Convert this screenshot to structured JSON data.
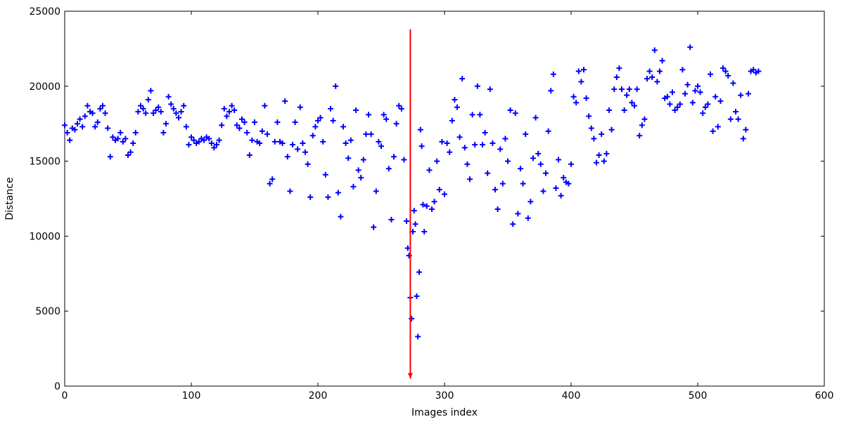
{
  "chart_data": {
    "type": "scatter",
    "xlabel": "Images index",
    "ylabel": "Distance",
    "xlim": [
      0,
      600
    ],
    "ylim": [
      0,
      25000
    ],
    "xticks": [
      0,
      100,
      200,
      300,
      400,
      500,
      600
    ],
    "yticks": [
      0,
      5000,
      10000,
      15000,
      20000,
      25000
    ],
    "grid": false,
    "color": "#0000ff",
    "marker": "+",
    "x": [
      0,
      2,
      4,
      6,
      8,
      10,
      12,
      14,
      16,
      18,
      20,
      22,
      24,
      26,
      28,
      30,
      32,
      34,
      36,
      38,
      40,
      42,
      44,
      46,
      48,
      50,
      52,
      54,
      56,
      58,
      60,
      62,
      64,
      66,
      68,
      70,
      72,
      74,
      76,
      78,
      80,
      82,
      84,
      86,
      88,
      90,
      92,
      94,
      96,
      98,
      100,
      102,
      104,
      106,
      108,
      110,
      112,
      114,
      116,
      118,
      120,
      122,
      124,
      126,
      128,
      130,
      132,
      134,
      136,
      138,
      140,
      142,
      144,
      146,
      148,
      150,
      152,
      154,
      156,
      158,
      160,
      162,
      164,
      166,
      168,
      170,
      172,
      174,
      176,
      178,
      180,
      182,
      184,
      186,
      188,
      190,
      192,
      194,
      196,
      198,
      200,
      202,
      204,
      206,
      208,
      210,
      212,
      214,
      216,
      218,
      220,
      222,
      224,
      226,
      228,
      230,
      232,
      234,
      236,
      238,
      240,
      242,
      244,
      246,
      248,
      250,
      252,
      254,
      256,
      258,
      260,
      262,
      264,
      266,
      268,
      270,
      271,
      272,
      273,
      274,
      275,
      276,
      277,
      278,
      279,
      280,
      281,
      282,
      283,
      284,
      286,
      288,
      290,
      292,
      294,
      296,
      298,
      300,
      302,
      304,
      306,
      308,
      310,
      312,
      314,
      316,
      318,
      320,
      322,
      324,
      326,
      328,
      330,
      332,
      334,
      336,
      338,
      340,
      342,
      344,
      346,
      348,
      350,
      352,
      354,
      356,
      358,
      360,
      362,
      364,
      366,
      368,
      370,
      372,
      374,
      376,
      378,
      380,
      382,
      384,
      386,
      388,
      390,
      392,
      394,
      396,
      398,
      400,
      402,
      404,
      406,
      408,
      410,
      412,
      414,
      416,
      418,
      420,
      422,
      424,
      426,
      428,
      430,
      432,
      434,
      436,
      438,
      440,
      442,
      444,
      446,
      448,
      450,
      452,
      454,
      456,
      458,
      460,
      462,
      464,
      466,
      468,
      470,
      472,
      474,
      476,
      478,
      480,
      482,
      484,
      486,
      488,
      490,
      492,
      494,
      496,
      498,
      500,
      502,
      504,
      506,
      508,
      510,
      512,
      514,
      516,
      518,
      520,
      522,
      524,
      526,
      528,
      530,
      532,
      534,
      536,
      538,
      540,
      542,
      544,
      546,
      548
    ],
    "values": [
      17400,
      16900,
      16400,
      17200,
      17100,
      17500,
      17800,
      17300,
      18000,
      18700,
      18300,
      18200,
      17300,
      17600,
      18500,
      18700,
      18200,
      17200,
      15300,
      16600,
      16400,
      16500,
      16900,
      16300,
      16500,
      15400,
      15600,
      16200,
      16900,
      18300,
      18700,
      18500,
      18200,
      19100,
      19700,
      18200,
      18400,
      18600,
      18300,
      16900,
      17500,
      19300,
      18800,
      18500,
      18200,
      17900,
      18300,
      18700,
      17300,
      16100,
      16600,
      16400,
      16200,
      16300,
      16500,
      16400,
      16600,
      16500,
      16200,
      15900,
      16100,
      16400,
      17400,
      18500,
      18000,
      18300,
      18700,
      18400,
      17400,
      17200,
      17800,
      17600,
      16900,
      15400,
      16400,
      17600,
      16300,
      16200,
      17000,
      18700,
      16800,
      13500,
      13800,
      16300,
      17600,
      16300,
      16200,
      19000,
      15300,
      13000,
      16100,
      17600,
      15800,
      18600,
      16200,
      15600,
      14800,
      12600,
      16700,
      17300,
      17700,
      17900,
      16300,
      14100,
      12600,
      18500,
      17700,
      20000,
      12900,
      11300,
      17300,
      16200,
      15200,
      16400,
      13300,
      18400,
      14400,
      13900,
      15100,
      16800,
      18100,
      16800,
      10600,
      13000,
      16300,
      16000,
      18100,
      17800,
      14500,
      11100,
      15300,
      17500,
      18700,
      18500,
      15100,
      11000,
      9200,
      8700,
      5900,
      4500,
      10300,
      11700,
      10800,
      6000,
      3300,
      7600,
      17100,
      16000,
      12100,
      10300,
      12000,
      14400,
      11800,
      12300,
      15000,
      13100,
      16300,
      12800,
      16200,
      15600,
      17700,
      19100,
      18600,
      16600,
      20500,
      15900,
      14800,
      13800,
      18100,
      16100,
      20000,
      18100,
      16100,
      16900,
      14200,
      19800,
      16200,
      13100,
      11800,
      15800,
      13500,
      16500,
      15000,
      18400,
      10800,
      18200,
      11500,
      14500,
      13500,
      16800,
      11200,
      12300,
      15200,
      17900,
      15500,
      14800,
      13000,
      14200,
      17000,
      19700,
      20800,
      13200,
      15100,
      12700,
      13900,
      13600,
      13500,
      14800,
      19300,
      18900,
      21000,
      20300,
      21100,
      19200,
      18000,
      17200,
      16500,
      14900,
      15400,
      16800,
      15000,
      15500,
      18400,
      17100,
      19800,
      20600,
      21200,
      19800,
      18400,
      19400,
      19800,
      18900,
      18700,
      19800,
      16700,
      17400,
      17800,
      20500,
      21000,
      20600,
      22400,
      20300,
      21000,
      21700,
      19200,
      19300,
      18800,
      19600,
      18400,
      18600,
      18800,
      21100,
      19500,
      20100,
      22600,
      18900,
      19700,
      20000,
      19600,
      18200,
      18600,
      18800,
      20800,
      17000,
      19300,
      17300,
      19000,
      21200,
      21000,
      20700,
      17800,
      20200,
      18300,
      17800,
      19400,
      16500,
      17100,
      19500,
      21000,
      21100,
      20900,
      21000
    ],
    "vline": {
      "x": 273,
      "y": [
        500,
        23800
      ],
      "color": "#ff0000"
    }
  }
}
